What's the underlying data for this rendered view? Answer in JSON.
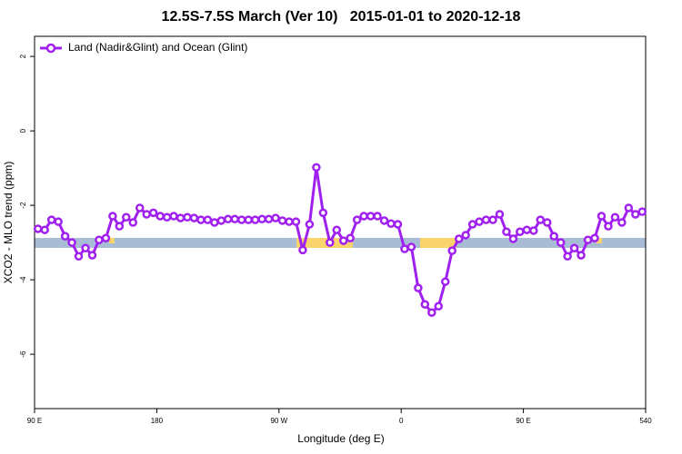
{
  "chart_data": {
    "type": "line",
    "title": "12.5S-7.5S March (Ver 10)   2015-01-01 to 2020-12-18",
    "xlabel": "Longitude (deg E)",
    "ylabel": "XCO2 - MLO trend (ppm)",
    "xlim": [
      90,
      540
    ],
    "xticks": [
      {
        "value": 90,
        "label": "90 E"
      },
      180,
      {
        "value": 270,
        "label": "90 W"
      },
      {
        "value": 360,
        "label": "0"
      },
      {
        "value": 450,
        "label": "90 E"
      },
      540
    ],
    "ylim": [
      -7.46,
      2.54
    ],
    "yticks": [
      2,
      0,
      -2,
      -4,
      -6
    ],
    "legend": "top-left",
    "x": [
      92.5,
      97.5,
      102.5,
      107.5,
      112.5,
      117.5,
      122.5,
      127.5,
      132.5,
      137.5,
      142.5,
      147.5,
      152.5,
      157.5,
      162.5,
      167.5,
      172.5,
      177.5,
      182.5,
      187.5,
      192.5,
      197.5,
      202.5,
      207.5,
      212.5,
      217.5,
      222.5,
      227.5,
      232.5,
      237.5,
      242.5,
      247.5,
      252.5,
      257.5,
      262.5,
      267.5,
      272.5,
      277.5,
      282.5,
      287.5,
      292.5,
      297.5,
      302.5,
      307.5,
      312.5,
      317.5,
      322.5,
      327.5,
      332.5,
      337.5,
      342.5,
      347.5,
      352.5,
      357.5,
      362.5,
      367.5,
      372.5,
      377.5,
      382.5,
      387.5,
      392.5,
      397.5,
      402.5,
      407.5,
      412.5,
      417.5,
      422.5,
      427.5,
      432.5,
      437.5,
      442.5,
      447.5,
      452.5,
      457.5,
      462.5,
      467.5,
      472.5,
      477.5,
      482.5,
      487.5,
      492.5,
      497.5,
      502.5,
      507.5,
      512.5,
      517.5,
      522.5,
      527.5,
      532.5,
      537.5
    ],
    "series": [
      {
        "name": "Land (Nadir&Glint) and Ocean (Glint)",
        "color": "#a020f0",
        "values": [
          -2.63,
          -2.66,
          -2.39,
          -2.44,
          -2.83,
          -3.0,
          -3.37,
          -3.15,
          -3.34,
          -2.93,
          -2.88,
          -2.29,
          -2.56,
          -2.32,
          -2.46,
          -2.07,
          -2.24,
          -2.2,
          -2.29,
          -2.32,
          -2.29,
          -2.34,
          -2.32,
          -2.34,
          -2.39,
          -2.39,
          -2.46,
          -2.41,
          -2.37,
          -2.37,
          -2.39,
          -2.39,
          -2.39,
          -2.37,
          -2.37,
          -2.34,
          -2.41,
          -2.44,
          -2.44,
          -3.2,
          -2.51,
          -0.98,
          -2.2,
          -3.0,
          -2.66,
          -2.95,
          -2.88,
          -2.39,
          -2.29,
          -2.29,
          -2.29,
          -2.41,
          -2.49,
          -2.51,
          -3.17,
          -3.12,
          -4.22,
          -4.66,
          -4.88,
          -4.71,
          -4.05,
          -3.22,
          -2.9,
          -2.8,
          -2.51,
          -2.44,
          -2.39,
          -2.39,
          -2.24,
          -2.71,
          -2.9,
          -2.71,
          -2.66,
          -2.68,
          -2.39,
          -2.46,
          -2.83,
          -3.0,
          -3.37,
          -3.15,
          -3.34,
          -2.93,
          -2.88,
          -2.29,
          -2.56,
          -2.32,
          -2.46,
          -2.07,
          -2.24,
          -2.17
        ]
      }
    ]
  }
}
